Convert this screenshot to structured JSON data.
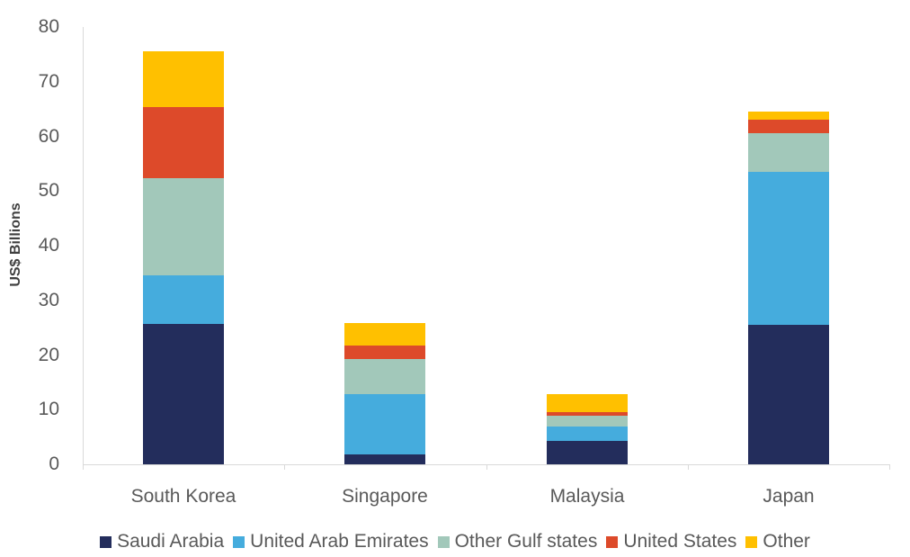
{
  "chart_data": {
    "type": "bar",
    "stacked": true,
    "title": "",
    "xlabel": "",
    "ylabel": "US$ Billions",
    "ylim": [
      0,
      80
    ],
    "yticks": [
      0,
      10,
      20,
      30,
      40,
      50,
      60,
      70,
      80
    ],
    "grid": false,
    "legend_position": "bottom",
    "categories": [
      "South Korea",
      "Singapore",
      "Malaysia",
      "Japan"
    ],
    "series": [
      {
        "name": "Saudi Arabia",
        "color": "#232D5C",
        "values": [
          25.7,
          1.8,
          4.3,
          25.5
        ]
      },
      {
        "name": "United Arab Emirates",
        "color": "#45ACDD",
        "values": [
          8.9,
          11.0,
          2.6,
          28.0
        ]
      },
      {
        "name": "Other Gulf states",
        "color": "#A2C8BA",
        "values": [
          17.8,
          6.4,
          2.0,
          7.1
        ]
      },
      {
        "name": "United States",
        "color": "#DD4A2A",
        "values": [
          12.9,
          2.5,
          0.7,
          2.5
        ]
      },
      {
        "name": "Other",
        "color": "#FFC000",
        "values": [
          10.2,
          4.1,
          3.3,
          1.5
        ]
      }
    ]
  }
}
